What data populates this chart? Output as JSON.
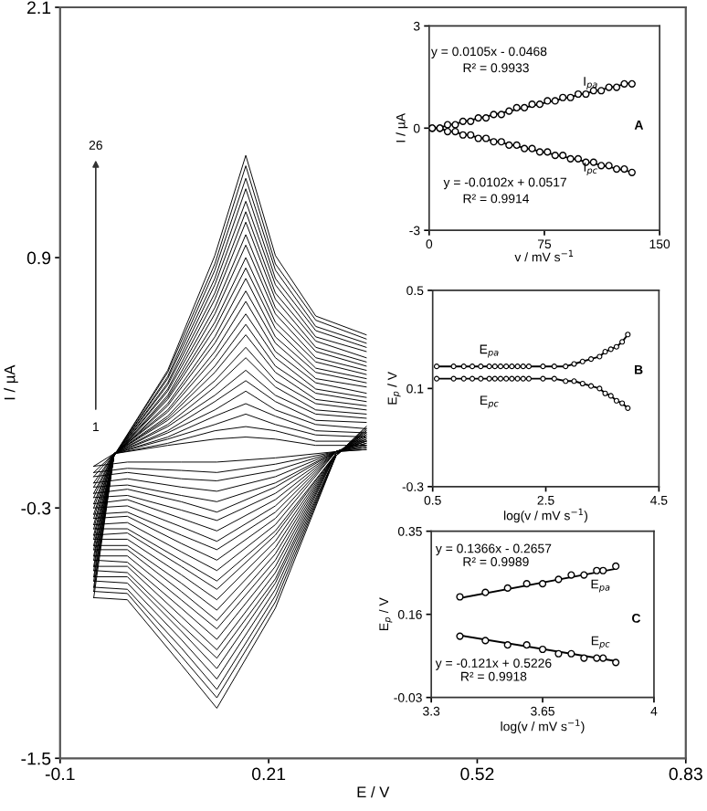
{
  "chart_data": [
    {
      "type": "line",
      "xlabel": "E / V",
      "ylabel": "I / µA",
      "xlim": [
        -0.1,
        0.83
      ],
      "ylim": [
        -1.5,
        2.1
      ],
      "xticks": [
        -0.1,
        0.21,
        0.52,
        0.83
      ],
      "yticks": [
        -1.5,
        -0.3,
        0.9,
        2.1
      ],
      "line_style": "solid",
      "annotations": [
        "26",
        "1"
      ],
      "x": [
        -0.05,
        -0.02,
        0.06,
        0.13,
        0.176,
        0.22,
        0.28,
        0.355
      ],
      "series": [
        {
          "color": "#000000",
          "values": [
            -0.1,
            -0.04,
            0.0,
            0.03,
            0.04,
            0.03,
            0.0,
            0.0
          ]
        },
        {
          "color": "#000000",
          "x": [
            0.355,
            0.31,
            0.22,
            0.133,
            0.08,
            0.0,
            -0.05
          ],
          "values": [
            -0.02,
            -0.03,
            -0.06,
            -0.08,
            -0.08,
            -0.08,
            -0.1
          ]
        },
        {
          "color": "#000000",
          "values": [
            -0.13,
            -0.04,
            0.01,
            0.07,
            0.09,
            0.07,
            0.02,
            0.02
          ]
        },
        {
          "color": "#000000",
          "x": [
            0.355,
            0.31,
            0.22,
            0.133,
            0.08,
            0.0,
            -0.05
          ],
          "values": [
            -0.02,
            -0.03,
            -0.09,
            -0.13,
            -0.12,
            -0.11,
            -0.13
          ]
        },
        {
          "color": "#000000",
          "values": [
            -0.15,
            -0.04,
            0.03,
            0.1,
            0.15,
            0.1,
            0.05,
            0.04
          ]
        },
        {
          "color": "#000000",
          "x": [
            0.355,
            0.31,
            0.22,
            0.133,
            0.08,
            0.0,
            -0.05
          ],
          "values": [
            -0.01,
            -0.03,
            -0.12,
            -0.17,
            -0.16,
            -0.13,
            -0.15
          ]
        },
        {
          "color": "#000000",
          "values": [
            -0.18,
            -0.04,
            0.04,
            0.14,
            0.2,
            0.14,
            0.07,
            0.06
          ]
        },
        {
          "color": "#000000",
          "x": [
            0.355,
            0.31,
            0.22,
            0.133,
            0.08,
            0.0,
            -0.05
          ],
          "values": [
            -0.01,
            -0.03,
            -0.15,
            -0.22,
            -0.2,
            -0.16,
            -0.18
          ]
        },
        {
          "color": "#000000",
          "values": [
            -0.2,
            -0.04,
            0.06,
            0.17,
            0.26,
            0.17,
            0.1,
            0.08
          ]
        },
        {
          "color": "#000000",
          "x": [
            0.355,
            0.31,
            0.22,
            0.133,
            0.08,
            0.0,
            -0.05
          ],
          "values": [
            0.0,
            -0.03,
            -0.18,
            -0.27,
            -0.24,
            -0.19,
            -0.2
          ]
        },
        {
          "color": "#000000",
          "values": [
            -0.23,
            -0.04,
            0.07,
            0.21,
            0.31,
            0.21,
            0.12,
            0.11
          ]
        },
        {
          "color": "#000000",
          "x": [
            0.355,
            0.31,
            0.22,
            0.133,
            0.08,
            0.0,
            -0.05
          ],
          "values": [
            0.0,
            -0.03,
            -0.2,
            -0.32,
            -0.27,
            -0.21,
            -0.23
          ]
        },
        {
          "color": "#000000",
          "values": [
            -0.25,
            -0.04,
            0.09,
            0.24,
            0.36,
            0.24,
            0.15,
            0.13
          ]
        },
        {
          "color": "#000000",
          "x": [
            0.355,
            0.31,
            0.22,
            0.133,
            0.08,
            0.0,
            -0.05
          ],
          "values": [
            0.01,
            -0.03,
            -0.23,
            -0.36,
            -0.31,
            -0.24,
            -0.25
          ]
        },
        {
          "color": "#000000",
          "values": [
            -0.28,
            -0.04,
            0.1,
            0.28,
            0.42,
            0.28,
            0.17,
            0.15
          ]
        },
        {
          "color": "#000000",
          "x": [
            0.355,
            0.31,
            0.22,
            0.133,
            0.08,
            0.0,
            -0.05
          ],
          "values": [
            0.01,
            -0.03,
            -0.26,
            -0.41,
            -0.35,
            -0.26,
            -0.28
          ]
        },
        {
          "color": "#000000",
          "values": [
            -0.3,
            -0.04,
            0.12,
            0.31,
            0.47,
            0.31,
            0.2,
            0.17
          ]
        },
        {
          "color": "#000000",
          "x": [
            0.355,
            0.31,
            0.22,
            0.133,
            0.08,
            0.0,
            -0.05
          ],
          "values": [
            0.02,
            -0.03,
            -0.29,
            -0.46,
            -0.39,
            -0.29,
            -0.3
          ]
        },
        {
          "color": "#000000",
          "values": [
            -0.33,
            -0.04,
            0.13,
            0.35,
            0.53,
            0.35,
            0.22,
            0.19
          ]
        },
        {
          "color": "#000000",
          "x": [
            0.355,
            0.31,
            0.22,
            0.133,
            0.08,
            0.0,
            -0.05
          ],
          "values": [
            0.02,
            -0.03,
            -0.32,
            -0.5,
            -0.43,
            -0.32,
            -0.33
          ]
        },
        {
          "color": "#000000",
          "values": [
            -0.35,
            -0.04,
            0.14,
            0.38,
            0.58,
            0.38,
            0.25,
            0.21
          ]
        },
        {
          "color": "#000000",
          "x": [
            0.355,
            0.31,
            0.22,
            0.133,
            0.08,
            0.0,
            -0.05
          ],
          "values": [
            0.02,
            -0.03,
            -0.35,
            -0.55,
            -0.47,
            -0.34,
            -0.35
          ]
        },
        {
          "color": "#000000",
          "values": [
            -0.38,
            -0.04,
            0.16,
            0.42,
            0.63,
            0.42,
            0.27,
            0.23
          ]
        },
        {
          "color": "#000000",
          "x": [
            0.355,
            0.31,
            0.22,
            0.133,
            0.08,
            0.0,
            -0.05
          ],
          "values": [
            0.03,
            -0.03,
            -0.38,
            -0.6,
            -0.51,
            -0.37,
            -0.38
          ]
        },
        {
          "color": "#000000",
          "values": [
            -0.4,
            -0.04,
            0.17,
            0.45,
            0.69,
            0.45,
            0.3,
            0.25
          ]
        },
        {
          "color": "#000000",
          "x": [
            0.355,
            0.31,
            0.22,
            0.133,
            0.08,
            0.0,
            -0.05
          ],
          "values": [
            0.03,
            -0.04,
            -0.41,
            -0.65,
            -0.55,
            -0.4,
            -0.4
          ]
        },
        {
          "color": "#000000",
          "values": [
            -0.43,
            -0.05,
            0.19,
            0.49,
            0.74,
            0.49,
            0.32,
            0.28
          ]
        },
        {
          "color": "#000000",
          "x": [
            0.355,
            0.31,
            0.22,
            0.133,
            0.08,
            0.0,
            -0.05
          ],
          "values": [
            0.04,
            -0.04,
            -0.43,
            -0.69,
            -0.58,
            -0.42,
            -0.43
          ]
        },
        {
          "color": "#000000",
          "values": [
            -0.45,
            -0.05,
            0.2,
            0.52,
            0.8,
            0.52,
            0.35,
            0.3
          ]
        },
        {
          "color": "#000000",
          "x": [
            0.355,
            0.31,
            0.22,
            0.133,
            0.08,
            0.0,
            -0.05
          ],
          "values": [
            0.04,
            -0.04,
            -0.46,
            -0.74,
            -0.62,
            -0.45,
            -0.45
          ]
        },
        {
          "color": "#000000",
          "values": [
            -0.48,
            -0.05,
            0.22,
            0.56,
            0.85,
            0.56,
            0.37,
            0.32
          ]
        },
        {
          "color": "#000000",
          "x": [
            0.355,
            0.31,
            0.22,
            0.133,
            0.08,
            0.0,
            -0.05
          ],
          "values": [
            0.05,
            -0.04,
            -0.49,
            -0.79,
            -0.66,
            -0.48,
            -0.48
          ]
        },
        {
          "color": "#000000",
          "values": [
            -0.5,
            -0.05,
            0.23,
            0.59,
            0.9,
            0.59,
            0.4,
            0.34
          ]
        },
        {
          "color": "#000000",
          "x": [
            0.355,
            0.31,
            0.22,
            0.133,
            0.08,
            0.0,
            -0.05
          ],
          "values": [
            0.05,
            -0.04,
            -0.52,
            -0.84,
            -0.7,
            -0.5,
            -0.5
          ]
        },
        {
          "color": "#000000",
          "values": [
            -0.53,
            -0.05,
            0.24,
            0.63,
            0.96,
            0.63,
            0.42,
            0.36
          ]
        },
        {
          "color": "#000000",
          "x": [
            0.355,
            0.31,
            0.22,
            0.133,
            0.08,
            0.0,
            -0.05
          ],
          "values": [
            0.05,
            -0.04,
            -0.55,
            -0.88,
            -0.74,
            -0.53,
            -0.53
          ]
        },
        {
          "color": "#000000",
          "values": [
            -0.55,
            -0.05,
            0.26,
            0.66,
            1.01,
            0.66,
            0.45,
            0.38
          ]
        },
        {
          "color": "#000000",
          "x": [
            0.355,
            0.31,
            0.22,
            0.133,
            0.08,
            0.0,
            -0.05
          ],
          "values": [
            0.06,
            -0.04,
            -0.58,
            -0.93,
            -0.78,
            -0.56,
            -0.55
          ]
        },
        {
          "color": "#000000",
          "values": [
            -0.58,
            -0.05,
            0.27,
            0.7,
            1.07,
            0.7,
            0.47,
            0.4
          ]
        },
        {
          "color": "#000000",
          "x": [
            0.355,
            0.31,
            0.22,
            0.133,
            0.08,
            0.0,
            -0.05
          ],
          "values": [
            0.06,
            -0.04,
            -0.61,
            -0.98,
            -0.82,
            -0.58,
            -0.58
          ]
        },
        {
          "color": "#000000",
          "values": [
            -0.6,
            -0.05,
            0.29,
            0.73,
            1.12,
            0.73,
            0.5,
            0.42
          ]
        },
        {
          "color": "#000000",
          "x": [
            0.355,
            0.31,
            0.22,
            0.133,
            0.08,
            0.0,
            -0.05
          ],
          "values": [
            0.07,
            -0.04,
            -0.64,
            -1.02,
            -0.86,
            -0.61,
            -0.6
          ]
        },
        {
          "color": "#000000",
          "values": [
            -0.63,
            -0.05,
            0.3,
            0.77,
            1.17,
            0.77,
            0.52,
            0.45
          ]
        },
        {
          "color": "#000000",
          "x": [
            0.355,
            0.31,
            0.22,
            0.133,
            0.08,
            0.0,
            -0.05
          ],
          "values": [
            0.07,
            -0.05,
            -0.66,
            -1.07,
            -0.89,
            -0.63,
            -0.63
          ]
        },
        {
          "color": "#000000",
          "values": [
            -0.65,
            -0.05,
            0.32,
            0.8,
            1.23,
            0.8,
            0.55,
            0.47
          ]
        },
        {
          "color": "#000000",
          "x": [
            0.355,
            0.31,
            0.22,
            0.133,
            0.08,
            0.0,
            -0.05
          ],
          "values": [
            0.08,
            -0.05,
            -0.69,
            -1.12,
            -0.93,
            -0.66,
            -0.65
          ]
        },
        {
          "color": "#000000",
          "values": [
            -0.68,
            -0.05,
            0.33,
            0.84,
            1.28,
            0.84,
            0.57,
            0.49
          ]
        },
        {
          "color": "#000000",
          "x": [
            0.355,
            0.31,
            0.22,
            0.133,
            0.08,
            0.0,
            -0.05
          ],
          "values": [
            0.08,
            -0.05,
            -0.72,
            -1.17,
            -0.97,
            -0.69,
            -0.68
          ]
        },
        {
          "color": "#000000",
          "values": [
            -0.7,
            -0.05,
            0.35,
            0.87,
            1.34,
            0.87,
            0.6,
            0.51
          ]
        },
        {
          "color": "#000000",
          "x": [
            0.355,
            0.31,
            0.22,
            0.133,
            0.08,
            0.0,
            -0.05
          ],
          "values": [
            0.09,
            -0.05,
            -0.75,
            -1.21,
            -1.01,
            -0.71,
            -0.7
          ]
        },
        {
          "color": "#000000",
          "values": [
            -0.73,
            -0.05,
            0.36,
            0.91,
            1.39,
            0.91,
            0.62,
            0.53
          ]
        },
        {
          "color": "#000000",
          "x": [
            0.355,
            0.31,
            0.22,
            0.133,
            0.08,
            0.0,
            -0.05
          ],
          "values": [
            0.09,
            -0.05,
            -0.78,
            -1.26,
            -1.05,
            -0.74,
            -0.73
          ]
        }
      ]
    },
    {
      "type": "scatter",
      "xlabel": "v / mV s$^{−1}$",
      "ylabel": "I / µA",
      "xlim": [
        0,
        150
      ],
      "ylim": [
        -3,
        3
      ],
      "xticks": [
        0,
        75,
        150
      ],
      "yticks": [
        -3,
        0,
        3
      ],
      "marker": "circle",
      "annotations": [
        "y = 0.0105x - 0.0468",
        "R² = 0.9933",
        "y = -0.0102x + 0.0517",
        "R² = 0.9914",
        "A"
      ],
      "x": [
        2,
        7,
        12,
        17,
        22,
        27,
        32,
        37,
        42,
        47,
        52,
        57,
        62,
        67,
        72,
        77,
        82,
        87,
        92,
        97,
        102,
        107,
        112,
        117,
        122,
        127,
        132
      ],
      "series": [
        {
          "name": "I$_{pa}$",
          "color": "#000000",
          "values": [
            0.0,
            0.0,
            0.1,
            0.1,
            0.2,
            0.2,
            0.3,
            0.3,
            0.4,
            0.4,
            0.5,
            0.6,
            0.6,
            0.7,
            0.7,
            0.8,
            0.8,
            0.9,
            0.9,
            1.0,
            1.0,
            1.1,
            1.1,
            1.2,
            1.2,
            1.3,
            1.3
          ]
        },
        {
          "name": "I$_{pc}$",
          "color": "#000000",
          "values": [
            0.0,
            0.0,
            -0.1,
            -0.1,
            -0.2,
            -0.2,
            -0.3,
            -0.3,
            -0.4,
            -0.4,
            -0.5,
            -0.5,
            -0.6,
            -0.6,
            -0.7,
            -0.7,
            -0.8,
            -0.8,
            -0.9,
            -0.9,
            -1.0,
            -1.0,
            -1.1,
            -1.1,
            -1.2,
            -1.2,
            -1.3
          ]
        },
        {
          "type": "line",
          "marker": "none",
          "color": "#000000",
          "x": [
            0,
            132
          ],
          "values": [
            -0.05,
            1.34
          ]
        },
        {
          "type": "line",
          "marker": "none",
          "color": "#000000",
          "x": [
            0,
            132
          ],
          "values": [
            0.05,
            -1.29
          ]
        }
      ]
    },
    {
      "type": "line",
      "xlabel": "log(v / mV s$^{−1}$)",
      "ylabel": "E$_{p}$ / V",
      "xlim": [
        0.5,
        4.5
      ],
      "ylim": [
        -0.3,
        0.5
      ],
      "xticks": [
        0.5,
        2.5,
        4.5
      ],
      "yticks": [
        -0.3,
        0.1,
        0.5
      ],
      "marker": "circle",
      "line_style": "solid",
      "x": [
        0.57,
        0.87,
        1.05,
        1.2,
        1.35,
        1.5,
        1.6,
        1.7,
        1.8,
        1.9,
        2.0,
        2.1,
        2.2,
        2.45,
        2.65,
        2.85,
        3.0,
        3.15,
        3.3,
        3.45,
        3.55,
        3.65,
        3.75,
        3.85,
        3.95
      ],
      "series": [
        {
          "name": "E$_{pa}$",
          "color": "#000000",
          "values": [
            0.19,
            0.19,
            0.19,
            0.19,
            0.19,
            0.19,
            0.19,
            0.19,
            0.19,
            0.19,
            0.19,
            0.19,
            0.19,
            0.19,
            0.19,
            0.19,
            0.2,
            0.21,
            0.22,
            0.23,
            0.25,
            0.26,
            0.27,
            0.29,
            0.32
          ]
        },
        {
          "name": "E$_{pc}$",
          "color": "#000000",
          "values": [
            0.14,
            0.14,
            0.14,
            0.14,
            0.14,
            0.14,
            0.14,
            0.14,
            0.14,
            0.14,
            0.14,
            0.14,
            0.14,
            0.14,
            0.14,
            0.13,
            0.13,
            0.12,
            0.11,
            0.1,
            0.08,
            0.07,
            0.05,
            0.04,
            0.02
          ]
        }
      ],
      "annotations": [
        "B"
      ]
    },
    {
      "type": "scatter",
      "xlabel": "log(v / mV s$^{−1}$)",
      "ylabel": "E$_{p}$ / V",
      "xlim": [
        3.3,
        4
      ],
      "ylim": [
        -0.03,
        0.35
      ],
      "xticks": [
        3.3,
        3.65,
        4
      ],
      "yticks": [
        -0.03,
        0.16,
        0.35
      ],
      "marker": "circle",
      "annotations": [
        "y = 0.1366x - 0.2657",
        "R² = 0.9989",
        "y = -0.121x + 0.5226",
        "R² = 0.9918",
        "C"
      ],
      "x": [
        3.39,
        3.47,
        3.54,
        3.6,
        3.65,
        3.7,
        3.74,
        3.78,
        3.82,
        3.84,
        3.88
      ],
      "series": [
        {
          "name": "E$_{pa}$",
          "color": "#000000",
          "values": [
            0.2,
            0.21,
            0.22,
            0.23,
            0.23,
            0.24,
            0.25,
            0.25,
            0.26,
            0.26,
            0.27
          ]
        },
        {
          "name": "E$_{pc}$",
          "color": "#000000",
          "values": [
            0.11,
            0.1,
            0.09,
            0.09,
            0.08,
            0.07,
            0.07,
            0.06,
            0.06,
            0.06,
            0.05
          ]
        },
        {
          "type": "line",
          "marker": "none",
          "color": "#000000",
          "x": [
            3.39,
            3.88
          ],
          "values": [
            0.197,
            0.264
          ]
        },
        {
          "type": "line",
          "marker": "none",
          "color": "#000000",
          "x": [
            3.39,
            3.88
          ],
          "values": [
            0.112,
            0.053
          ]
        }
      ]
    }
  ]
}
